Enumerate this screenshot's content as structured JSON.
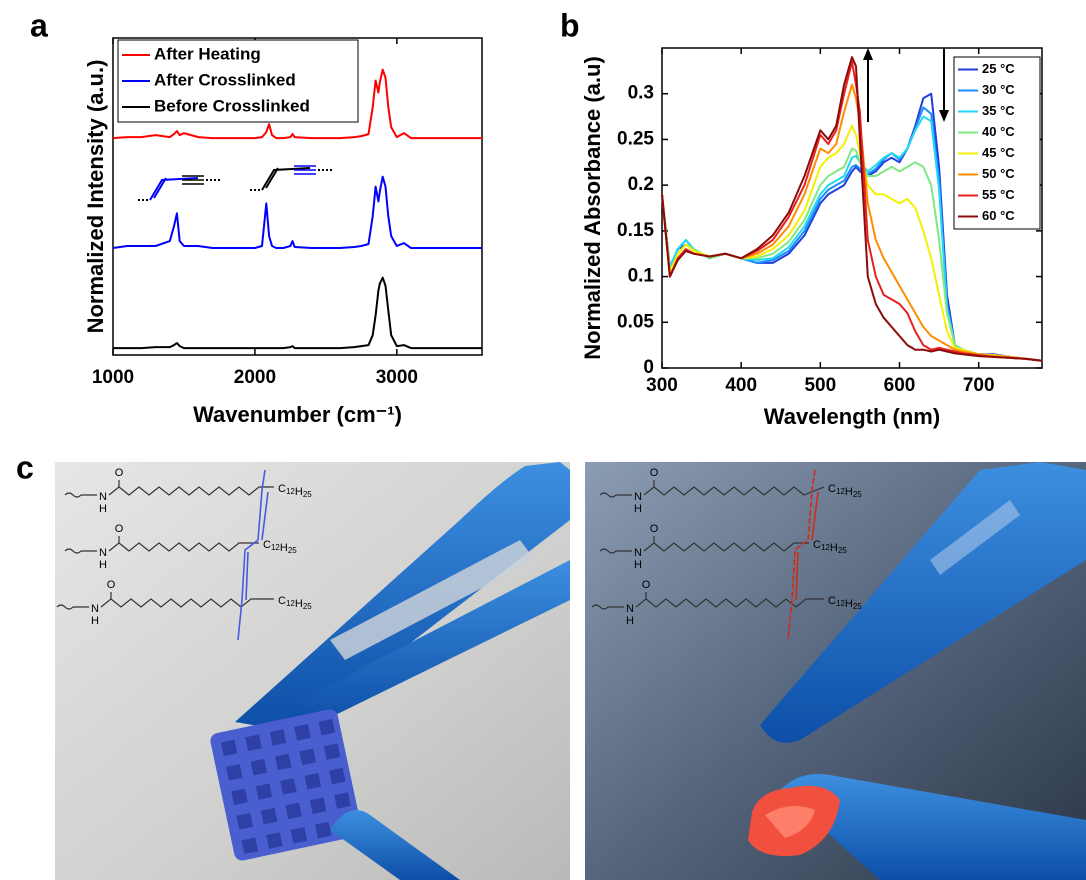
{
  "chart_data": [
    {
      "type": "line",
      "label": "a",
      "xlabel": "Wavenumber (cm⁻¹)",
      "ylabel": "Normalized Intensity (a.u.)",
      "x": [
        1000,
        1100,
        1200,
        1300,
        1400,
        1430,
        1450,
        1470,
        1500,
        1600,
        1700,
        1800,
        1900,
        2000,
        2050,
        2080,
        2100,
        2120,
        2150,
        2200,
        2250,
        2265,
        2280,
        2400,
        2600,
        2700,
        2750,
        2800,
        2830,
        2850,
        2870,
        2880,
        2900,
        2920,
        2940,
        2960,
        3000,
        3050,
        3100,
        3300,
        3600
      ],
      "series": [
        {
          "name": "After Heating",
          "color": "#ff0000",
          "values": [
            2.19,
            2.2,
            2.2,
            2.22,
            2.2,
            2.23,
            2.26,
            2.22,
            2.24,
            2.2,
            2.19,
            2.19,
            2.19,
            2.19,
            2.2,
            2.25,
            2.33,
            2.22,
            2.19,
            2.19,
            2.2,
            2.23,
            2.2,
            2.19,
            2.19,
            2.2,
            2.21,
            2.23,
            2.5,
            2.77,
            2.65,
            2.75,
            2.88,
            2.8,
            2.5,
            2.3,
            2.2,
            2.24,
            2.19,
            2.19,
            2.19
          ]
        },
        {
          "name": "After Crosslinked",
          "color": "#0000ff",
          "values": [
            1.08,
            1.1,
            1.1,
            1.1,
            1.15,
            1.3,
            1.43,
            1.15,
            1.1,
            1.1,
            1.08,
            1.08,
            1.08,
            1.08,
            1.1,
            1.53,
            1.2,
            1.1,
            1.08,
            1.08,
            1.1,
            1.15,
            1.09,
            1.08,
            1.08,
            1.09,
            1.1,
            1.12,
            1.4,
            1.7,
            1.55,
            1.65,
            1.8,
            1.7,
            1.4,
            1.2,
            1.1,
            1.13,
            1.08,
            1.08,
            1.08
          ]
        },
        {
          "name": "Before Crosslinked",
          "color": "#000000",
          "values": [
            0.07,
            0.07,
            0.07,
            0.08,
            0.08,
            0.1,
            0.12,
            0.09,
            0.07,
            0.07,
            0.07,
            0.07,
            0.07,
            0.07,
            0.07,
            0.07,
            0.07,
            0.07,
            0.07,
            0.07,
            0.08,
            0.09,
            0.07,
            0.07,
            0.07,
            0.08,
            0.09,
            0.1,
            0.2,
            0.4,
            0.65,
            0.72,
            0.78,
            0.7,
            0.45,
            0.2,
            0.09,
            0.1,
            0.07,
            0.07,
            0.07
          ]
        }
      ],
      "xlim": [
        1000,
        3600
      ],
      "xticks": [
        1000,
        2000,
        3000
      ],
      "ylim": [
        0,
        3.2
      ],
      "legend": "upper left",
      "grid": false
    },
    {
      "type": "line",
      "label": "b",
      "xlabel": "Wavelength (nm)",
      "ylabel": "Normalized Absorbance (a.u)",
      "x": [
        300,
        310,
        320,
        330,
        340,
        360,
        380,
        400,
        420,
        440,
        460,
        480,
        500,
        510,
        520,
        530,
        540,
        545,
        550,
        560,
        570,
        580,
        590,
        600,
        610,
        620,
        630,
        640,
        650,
        660,
        670,
        680,
        700,
        720,
        740,
        760,
        780
      ],
      "series": [
        {
          "name": "25 °C",
          "color": "#1f3fd8",
          "values": [
            0.19,
            0.11,
            0.13,
            0.135,
            0.13,
            0.12,
            0.125,
            0.12,
            0.115,
            0.115,
            0.125,
            0.145,
            0.18,
            0.19,
            0.195,
            0.2,
            0.215,
            0.22,
            0.215,
            0.21,
            0.215,
            0.225,
            0.23,
            0.225,
            0.24,
            0.265,
            0.295,
            0.3,
            0.22,
            0.08,
            0.025,
            0.02,
            0.015,
            0.015,
            0.012,
            0.01,
            0.008
          ]
        },
        {
          "name": "30 °C",
          "color": "#1a8cff",
          "values": [
            0.19,
            0.11,
            0.13,
            0.14,
            0.13,
            0.12,
            0.125,
            0.12,
            0.115,
            0.118,
            0.128,
            0.15,
            0.185,
            0.195,
            0.2,
            0.205,
            0.22,
            0.222,
            0.218,
            0.212,
            0.218,
            0.228,
            0.235,
            0.228,
            0.24,
            0.262,
            0.285,
            0.278,
            0.205,
            0.07,
            0.025,
            0.02,
            0.015,
            0.014,
            0.012,
            0.01,
            0.008
          ]
        },
        {
          "name": "35 °C",
          "color": "#22d8f0",
          "values": [
            0.19,
            0.11,
            0.13,
            0.14,
            0.13,
            0.12,
            0.125,
            0.12,
            0.118,
            0.12,
            0.132,
            0.155,
            0.19,
            0.2,
            0.205,
            0.21,
            0.23,
            0.232,
            0.225,
            0.215,
            0.222,
            0.23,
            0.235,
            0.23,
            0.24,
            0.26,
            0.275,
            0.27,
            0.195,
            0.065,
            0.025,
            0.02,
            0.015,
            0.014,
            0.012,
            0.01,
            0.008
          ]
        },
        {
          "name": "40 °C",
          "color": "#80e880",
          "values": [
            0.19,
            0.105,
            0.125,
            0.135,
            0.13,
            0.12,
            0.125,
            0.12,
            0.12,
            0.125,
            0.138,
            0.162,
            0.2,
            0.21,
            0.215,
            0.22,
            0.24,
            0.238,
            0.225,
            0.21,
            0.21,
            0.215,
            0.22,
            0.215,
            0.22,
            0.225,
            0.22,
            0.2,
            0.14,
            0.06,
            0.025,
            0.02,
            0.015,
            0.014,
            0.012,
            0.01,
            0.008
          ]
        },
        {
          "name": "45 °C",
          "color": "#f5f000",
          "values": [
            0.19,
            0.105,
            0.125,
            0.135,
            0.128,
            0.122,
            0.125,
            0.12,
            0.122,
            0.13,
            0.145,
            0.172,
            0.22,
            0.23,
            0.235,
            0.245,
            0.265,
            0.255,
            0.235,
            0.2,
            0.19,
            0.19,
            0.185,
            0.18,
            0.185,
            0.175,
            0.15,
            0.12,
            0.08,
            0.04,
            0.022,
            0.02,
            0.015,
            0.014,
            0.012,
            0.01,
            0.008
          ]
        },
        {
          "name": "50 °C",
          "color": "#ff8c00",
          "values": [
            0.19,
            0.1,
            0.12,
            0.13,
            0.125,
            0.122,
            0.125,
            0.12,
            0.125,
            0.135,
            0.155,
            0.19,
            0.24,
            0.235,
            0.245,
            0.28,
            0.31,
            0.295,
            0.27,
            0.18,
            0.14,
            0.12,
            0.105,
            0.09,
            0.075,
            0.06,
            0.045,
            0.035,
            0.03,
            0.025,
            0.02,
            0.018,
            0.015,
            0.013,
            0.012,
            0.01,
            0.008
          ]
        },
        {
          "name": "55 °C",
          "color": "#e8201e",
          "values": [
            0.19,
            0.1,
            0.12,
            0.13,
            0.125,
            0.122,
            0.125,
            0.12,
            0.128,
            0.14,
            0.165,
            0.2,
            0.255,
            0.245,
            0.26,
            0.3,
            0.335,
            0.31,
            0.28,
            0.14,
            0.1,
            0.08,
            0.075,
            0.07,
            0.06,
            0.04,
            0.025,
            0.02,
            0.022,
            0.02,
            0.018,
            0.016,
            0.014,
            0.012,
            0.011,
            0.01,
            0.008
          ]
        },
        {
          "name": "60 °C",
          "color": "#8b0a0a",
          "values": [
            0.19,
            0.1,
            0.118,
            0.128,
            0.125,
            0.122,
            0.125,
            0.12,
            0.13,
            0.145,
            0.17,
            0.21,
            0.26,
            0.25,
            0.265,
            0.31,
            0.34,
            0.33,
            0.25,
            0.1,
            0.07,
            0.055,
            0.045,
            0.035,
            0.025,
            0.02,
            0.02,
            0.018,
            0.02,
            0.018,
            0.016,
            0.015,
            0.013,
            0.012,
            0.011,
            0.01,
            0.008
          ]
        }
      ],
      "xlim": [
        300,
        780
      ],
      "xticks": [
        300,
        400,
        500,
        600,
        700
      ],
      "ylim": [
        0,
        0.35
      ],
      "yticks": [
        0,
        0.05,
        0.1,
        0.15,
        0.2,
        0.25,
        0.3
      ],
      "legend": "upper right",
      "grid": false
    }
  ],
  "photos": {
    "label": "c",
    "panels": [
      {
        "structures": [
          {
            "o": "O",
            "n": "N",
            "h": "H",
            "substituent": "C12H25"
          },
          {
            "o": "O",
            "n": "N",
            "h": "H",
            "substituent": "C12H25"
          },
          {
            "o": "O",
            "n": "N",
            "h": "H",
            "substituent": "C12H25"
          }
        ]
      },
      {
        "structures": [
          {
            "o": "O",
            "n": "N",
            "h": "H",
            "substituent": "C12H25"
          },
          {
            "o": "O",
            "n": "N",
            "h": "H",
            "substituent": "C12H25"
          },
          {
            "o": "O",
            "n": "N",
            "h": "H",
            "substituent": "C12H25"
          }
        ]
      }
    ]
  }
}
